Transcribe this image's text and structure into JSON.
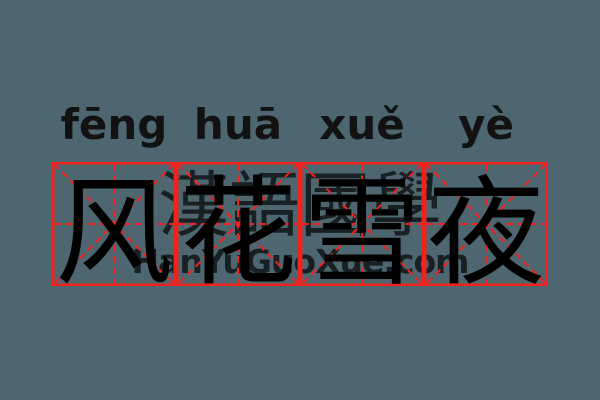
{
  "page": {
    "background_color": "#4d6670",
    "ink_color": "#000000"
  },
  "word": {
    "syllables": [
      {
        "pinyin": "fēng",
        "hanzi": "风"
      },
      {
        "pinyin": "huā",
        "hanzi": "花"
      },
      {
        "pinyin": "xuě",
        "hanzi": "雪"
      },
      {
        "pinyin": "yè",
        "hanzi": "夜"
      }
    ]
  },
  "grid": {
    "cells": 4,
    "line_color": "#f3211d"
  },
  "watermark": {
    "cjk_text": "漢語國學",
    "latin_text": "HanYuGuoXue.com",
    "color": "#000000",
    "opacity": 0.68
  }
}
